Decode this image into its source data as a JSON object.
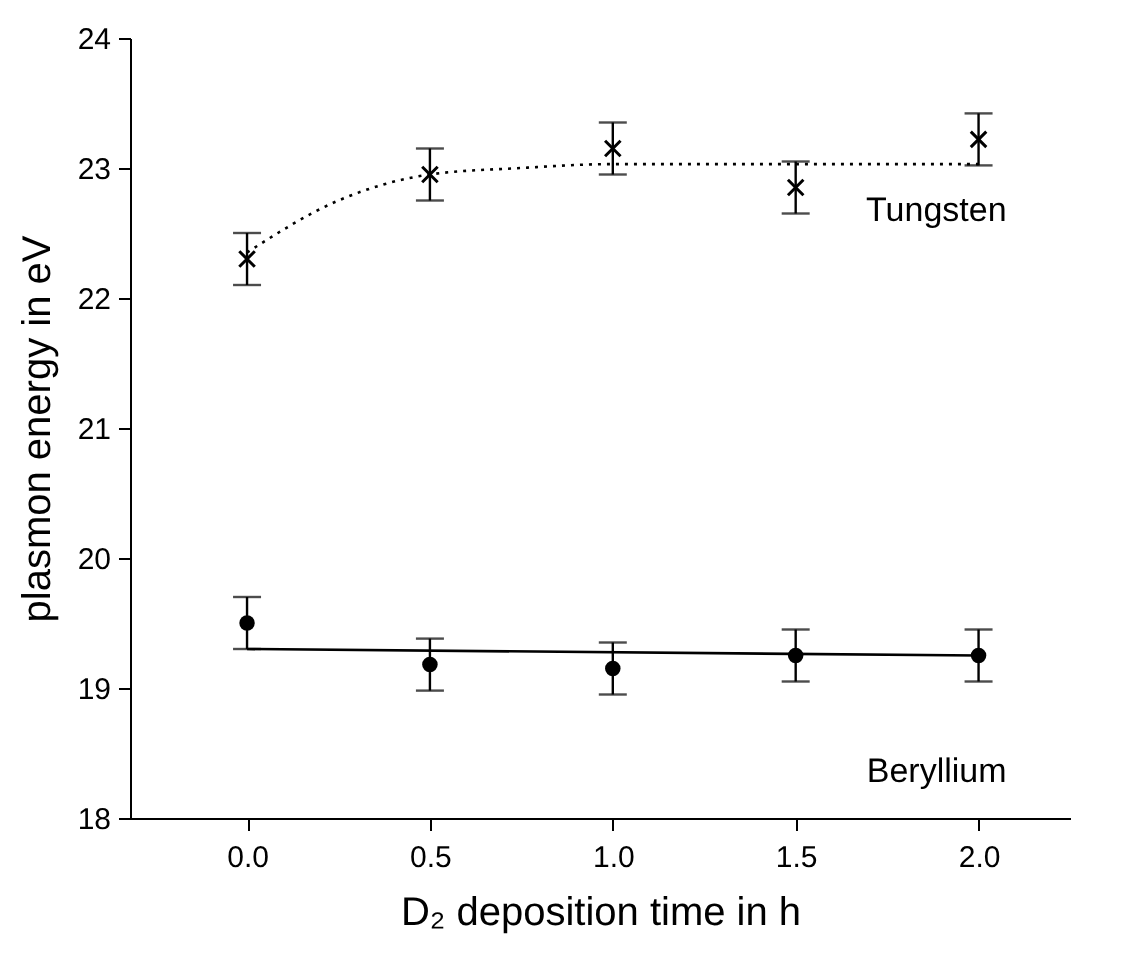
{
  "chart_data": {
    "type": "scatter",
    "xlabel": "D₂ deposition time in h",
    "ylabel": "plasmon energy in eV",
    "xlim": [
      -0.32,
      2.25
    ],
    "xticks": [
      {
        "value": 0,
        "label": "0.0"
      },
      {
        "value": 0.5,
        "label": "0.5"
      },
      {
        "value": 1,
        "label": "1.0"
      },
      {
        "value": 1.5,
        "label": "1.5"
      },
      {
        "value": 2,
        "label": "2.0"
      }
    ],
    "ylim": [
      18,
      24
    ],
    "yticks": [
      18,
      19,
      20,
      21,
      22,
      23,
      24
    ],
    "grid": false,
    "series": [
      {
        "name": "Tungsten",
        "color": "#000000",
        "marker": "cross",
        "x": [
          0,
          0.5,
          1,
          1.5,
          2
        ],
        "values": [
          22.3,
          22.95,
          23.15,
          22.85,
          23.22
        ],
        "errors": [
          0.2,
          0.2,
          0.2,
          0.2,
          0.2
        ]
      },
      {
        "type": "line",
        "color": "#000000",
        "marker": "none",
        "line_style": "dotted",
        "x": [
          0,
          0.25,
          0.5,
          0.75,
          1,
          1.5,
          2
        ],
        "values": [
          22.35,
          22.75,
          22.95,
          23.0,
          23.03,
          23.03,
          23.03
        ]
      },
      {
        "name": "Beryllium",
        "color": "#000000",
        "marker": "circle",
        "x": [
          0,
          0.5,
          1,
          1.5,
          2
        ],
        "values": [
          19.5,
          19.18,
          19.15,
          19.25,
          19.25
        ],
        "errors": [
          0.2,
          0.2,
          0.2,
          0.2,
          0.2
        ]
      },
      {
        "type": "line",
        "color": "#000000",
        "marker": "none",
        "line_style": "solid",
        "x": [
          0,
          2
        ],
        "values": [
          19.3,
          19.25
        ]
      }
    ]
  }
}
